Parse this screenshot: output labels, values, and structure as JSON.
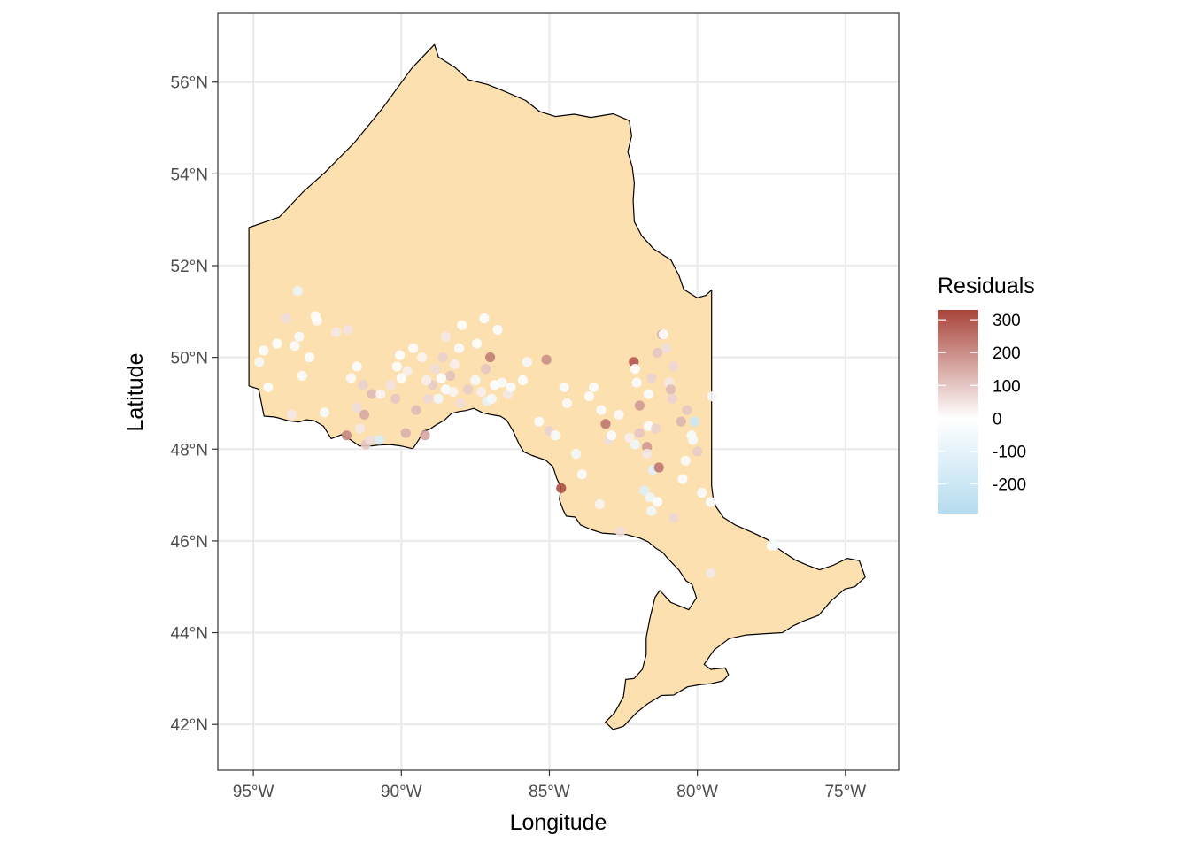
{
  "chart_data": {
    "type": "scatter",
    "map_region": "Ontario",
    "xlabel": "Longitude",
    "ylabel": "Latitude",
    "xlim": [
      -96.2,
      -73.2
    ],
    "ylim": [
      41.0,
      57.5
    ],
    "x_ticks": [
      {
        "value": -95,
        "label": "95°W"
      },
      {
        "value": -90,
        "label": "90°W"
      },
      {
        "value": -85,
        "label": "85°W"
      },
      {
        "value": -80,
        "label": "80°W"
      },
      {
        "value": -75,
        "label": "75°W"
      }
    ],
    "y_ticks": [
      {
        "value": 42,
        "label": "42°N"
      },
      {
        "value": 44,
        "label": "44°N"
      },
      {
        "value": 46,
        "label": "46°N"
      },
      {
        "value": 48,
        "label": "48°N"
      },
      {
        "value": 50,
        "label": "50°N"
      },
      {
        "value": 52,
        "label": "52°N"
      },
      {
        "value": 54,
        "label": "54°N"
      },
      {
        "value": 56,
        "label": "56°N"
      }
    ],
    "grid": true,
    "panel_background": "#ffffff",
    "grid_color": "#ebebeb",
    "land_fill": "#fde0b0",
    "border_color": "#000000",
    "legend": {
      "title": "Residuals",
      "position": "right",
      "range": [
        -290,
        330
      ],
      "ticks": [
        {
          "value": 300,
          "label": "300"
        },
        {
          "value": 200,
          "label": "200"
        },
        {
          "value": 100,
          "label": "100"
        },
        {
          "value": 0,
          "label": "0"
        },
        {
          "value": -100,
          "label": "-100"
        },
        {
          "value": -200,
          "label": "-200"
        }
      ],
      "color_low": "#b5dcef",
      "color_mid": "#ffffff",
      "color_high": "#a8443a"
    },
    "ontario_outline": [
      [
        -95.15,
        52.83
      ],
      [
        -95.15,
        49.38
      ],
      [
        -94.82,
        49.31
      ],
      [
        -94.64,
        48.72
      ],
      [
        -94.27,
        48.7
      ],
      [
        -93.83,
        48.62
      ],
      [
        -93.46,
        48.59
      ],
      [
        -93.21,
        48.64
      ],
      [
        -92.95,
        48.62
      ],
      [
        -92.63,
        48.5
      ],
      [
        -92.37,
        48.23
      ],
      [
        -92.0,
        48.32
      ],
      [
        -91.71,
        48.2
      ],
      [
        -91.42,
        48.07
      ],
      [
        -91.0,
        48.07
      ],
      [
        -90.75,
        48.09
      ],
      [
        -90.37,
        48.1
      ],
      [
        -90.03,
        48.07
      ],
      [
        -89.61,
        48.01
      ],
      [
        -89.4,
        48.22
      ],
      [
        -89.27,
        48.39
      ],
      [
        -89.05,
        48.43
      ],
      [
        -88.82,
        48.53
      ],
      [
        -88.55,
        48.63
      ],
      [
        -88.3,
        48.78
      ],
      [
        -88.06,
        48.82
      ],
      [
        -87.82,
        48.84
      ],
      [
        -87.55,
        48.89
      ],
      [
        -87.25,
        48.79
      ],
      [
        -86.96,
        48.75
      ],
      [
        -86.66,
        48.72
      ],
      [
        -86.44,
        48.63
      ],
      [
        -86.23,
        48.4
      ],
      [
        -86.0,
        48.08
      ],
      [
        -85.86,
        47.94
      ],
      [
        -85.58,
        47.86
      ],
      [
        -85.13,
        47.76
      ],
      [
        -84.88,
        47.62
      ],
      [
        -84.75,
        47.36
      ],
      [
        -84.61,
        47.17
      ],
      [
        -84.66,
        46.9
      ],
      [
        -84.55,
        46.7
      ],
      [
        -84.43,
        46.54
      ],
      [
        -84.13,
        46.52
      ],
      [
        -83.95,
        46.35
      ],
      [
        -83.6,
        46.25
      ],
      [
        -83.22,
        46.17
      ],
      [
        -82.8,
        46.15
      ],
      [
        -82.4,
        46.14
      ],
      [
        -81.94,
        46.06
      ],
      [
        -81.66,
        45.98
      ],
      [
        -81.4,
        45.84
      ],
      [
        -81.17,
        45.75
      ],
      [
        -80.98,
        45.6
      ],
      [
        -80.63,
        45.37
      ],
      [
        -80.38,
        45.13
      ],
      [
        -80.18,
        45.05
      ],
      [
        -80.03,
        44.76
      ],
      [
        -80.29,
        44.5
      ],
      [
        -80.9,
        44.66
      ],
      [
        -81.27,
        44.92
      ],
      [
        -81.43,
        44.77
      ],
      [
        -81.6,
        44.32
      ],
      [
        -81.73,
        43.89
      ],
      [
        -81.73,
        43.52
      ],
      [
        -81.86,
        43.2
      ],
      [
        -82.14,
        43.0
      ],
      [
        -82.42,
        42.98
      ],
      [
        -82.5,
        42.6
      ],
      [
        -82.8,
        42.25
      ],
      [
        -83.11,
        42.05
      ],
      [
        -82.85,
        41.89
      ],
      [
        -82.5,
        41.96
      ],
      [
        -82.05,
        42.26
      ],
      [
        -81.68,
        42.45
      ],
      [
        -81.22,
        42.63
      ],
      [
        -80.8,
        42.64
      ],
      [
        -80.33,
        42.82
      ],
      [
        -79.88,
        42.87
      ],
      [
        -79.53,
        42.89
      ],
      [
        -79.14,
        42.95
      ],
      [
        -78.95,
        43.08
      ],
      [
        -79.06,
        43.23
      ],
      [
        -79.55,
        43.2
      ],
      [
        -79.77,
        43.31
      ],
      [
        -79.44,
        43.62
      ],
      [
        -78.93,
        43.87
      ],
      [
        -78.35,
        43.95
      ],
      [
        -77.7,
        43.98
      ],
      [
        -77.13,
        44.0
      ],
      [
        -76.76,
        44.15
      ],
      [
        -76.43,
        44.25
      ],
      [
        -75.9,
        44.38
      ],
      [
        -75.49,
        44.69
      ],
      [
        -75.02,
        44.95
      ],
      [
        -74.68,
        45.0
      ],
      [
        -74.33,
        45.21
      ],
      [
        -74.53,
        45.57
      ],
      [
        -74.94,
        45.62
      ],
      [
        -75.41,
        45.47
      ],
      [
        -75.87,
        45.37
      ],
      [
        -76.28,
        45.47
      ],
      [
        -76.68,
        45.58
      ],
      [
        -77.2,
        45.8
      ],
      [
        -77.63,
        46.03
      ],
      [
        -78.13,
        46.18
      ],
      [
        -78.73,
        46.35
      ],
      [
        -79.12,
        46.51
      ],
      [
        -79.38,
        46.75
      ],
      [
        -79.47,
        46.94
      ],
      [
        -79.52,
        47.2
      ],
      [
        -79.52,
        47.6
      ],
      [
        -79.52,
        48.5
      ],
      [
        -79.52,
        49.5
      ],
      [
        -79.52,
        50.5
      ],
      [
        -79.52,
        51.47
      ],
      [
        -79.72,
        51.35
      ],
      [
        -80.01,
        51.3
      ],
      [
        -80.46,
        51.48
      ],
      [
        -80.62,
        51.78
      ],
      [
        -80.89,
        52.12
      ],
      [
        -81.47,
        52.36
      ],
      [
        -81.88,
        52.65
      ],
      [
        -82.13,
        52.96
      ],
      [
        -82.17,
        53.42
      ],
      [
        -82.13,
        53.8
      ],
      [
        -82.2,
        54.15
      ],
      [
        -82.35,
        54.48
      ],
      [
        -82.22,
        54.83
      ],
      [
        -82.3,
        55.16
      ],
      [
        -82.84,
        55.31
      ],
      [
        -83.6,
        55.23
      ],
      [
        -84.16,
        55.3
      ],
      [
        -84.8,
        55.25
      ],
      [
        -85.33,
        55.36
      ],
      [
        -85.8,
        55.6
      ],
      [
        -86.55,
        55.81
      ],
      [
        -87.1,
        55.95
      ],
      [
        -87.73,
        56.05
      ],
      [
        -88.19,
        56.32
      ],
      [
        -88.75,
        56.55
      ],
      [
        -88.88,
        56.82
      ],
      [
        -89.65,
        56.3
      ],
      [
        -90.65,
        55.42
      ],
      [
        -91.6,
        54.67
      ],
      [
        -92.57,
        54.04
      ],
      [
        -93.33,
        53.6
      ],
      [
        -94.12,
        53.06
      ],
      [
        -95.15,
        52.83
      ]
    ],
    "points": [
      {
        "lon": -93.5,
        "lat": 51.45,
        "r": -80
      },
      {
        "lon": -94.8,
        "lat": 49.9,
        "r": -40
      },
      {
        "lon": -94.65,
        "lat": 50.15,
        "r": -20
      },
      {
        "lon": -94.2,
        "lat": 50.3,
        "r": -10
      },
      {
        "lon": -93.9,
        "lat": 50.85,
        "r": 60
      },
      {
        "lon": -93.6,
        "lat": 50.25,
        "r": -25
      },
      {
        "lon": -93.45,
        "lat": 50.45,
        "r": -30
      },
      {
        "lon": -92.9,
        "lat": 50.9,
        "r": -5
      },
      {
        "lon": -92.85,
        "lat": 50.8,
        "r": 5
      },
      {
        "lon": -93.35,
        "lat": 49.6,
        "r": -15
      },
      {
        "lon": -93.1,
        "lat": 50.0,
        "r": -10
      },
      {
        "lon": -92.2,
        "lat": 50.55,
        "r": 40
      },
      {
        "lon": -91.8,
        "lat": 50.6,
        "r": 50
      },
      {
        "lon": -91.5,
        "lat": 49.8,
        "r": -20
      },
      {
        "lon": -91.7,
        "lat": 49.55,
        "r": 10
      },
      {
        "lon": -91.3,
        "lat": 49.4,
        "r": 80
      },
      {
        "lon": -91.0,
        "lat": 49.2,
        "r": 120
      },
      {
        "lon": -91.5,
        "lat": 48.9,
        "r": 60
      },
      {
        "lon": -91.25,
        "lat": 48.75,
        "r": 150
      },
      {
        "lon": -91.4,
        "lat": 48.45,
        "r": 40
      },
      {
        "lon": -91.85,
        "lat": 48.3,
        "r": 210
      },
      {
        "lon": -91.2,
        "lat": 48.1,
        "r": 100
      },
      {
        "lon": -91.05,
        "lat": 48.2,
        "r": 60
      },
      {
        "lon": -90.75,
        "lat": 48.2,
        "r": -150
      },
      {
        "lon": -90.7,
        "lat": 49.2,
        "r": 20
      },
      {
        "lon": -90.35,
        "lat": 49.4,
        "r": 50
      },
      {
        "lon": -90.15,
        "lat": 49.8,
        "r": -10
      },
      {
        "lon": -90.05,
        "lat": 50.05,
        "r": 0
      },
      {
        "lon": -90.2,
        "lat": 49.1,
        "r": 100
      },
      {
        "lon": -89.8,
        "lat": 49.7,
        "r": 30
      },
      {
        "lon": -89.6,
        "lat": 50.2,
        "r": -5
      },
      {
        "lon": -89.5,
        "lat": 48.85,
        "r": 120
      },
      {
        "lon": -89.85,
        "lat": 48.35,
        "r": 140
      },
      {
        "lon": -89.2,
        "lat": 48.3,
        "r": 160
      },
      {
        "lon": -89.1,
        "lat": 49.1,
        "r": 70
      },
      {
        "lon": -88.95,
        "lat": 49.4,
        "r": 90
      },
      {
        "lon": -88.75,
        "lat": 49.1,
        "r": -60
      },
      {
        "lon": -88.5,
        "lat": 49.3,
        "r": -20
      },
      {
        "lon": -88.85,
        "lat": 49.75,
        "r": 60
      },
      {
        "lon": -88.6,
        "lat": 50.0,
        "r": 80
      },
      {
        "lon": -88.35,
        "lat": 49.6,
        "r": 110
      },
      {
        "lon": -88.2,
        "lat": 49.85,
        "r": 30
      },
      {
        "lon": -88.05,
        "lat": 50.2,
        "r": -30
      },
      {
        "lon": -88.5,
        "lat": 50.45,
        "r": 40
      },
      {
        "lon": -88.0,
        "lat": 49.0,
        "r": 60
      },
      {
        "lon": -87.75,
        "lat": 49.3,
        "r": 90
      },
      {
        "lon": -87.5,
        "lat": 49.5,
        "r": -40
      },
      {
        "lon": -87.3,
        "lat": 49.25,
        "r": 30
      },
      {
        "lon": -87.1,
        "lat": 49.05,
        "r": -100
      },
      {
        "lon": -87.0,
        "lat": 50.0,
        "r": 230
      },
      {
        "lon": -87.15,
        "lat": 49.75,
        "r": 100
      },
      {
        "lon": -87.45,
        "lat": 50.3,
        "r": -10
      },
      {
        "lon": -87.2,
        "lat": 50.85,
        "r": -20
      },
      {
        "lon": -86.75,
        "lat": 50.6,
        "r": -15
      },
      {
        "lon": -86.6,
        "lat": 49.45,
        "r": -30
      },
      {
        "lon": -86.4,
        "lat": 49.2,
        "r": 40
      },
      {
        "lon": -86.3,
        "lat": 49.35,
        "r": -20
      },
      {
        "lon": -85.9,
        "lat": 49.5,
        "r": -10
      },
      {
        "lon": -85.75,
        "lat": 49.9,
        "r": -40
      },
      {
        "lon": -85.1,
        "lat": 49.95,
        "r": 200
      },
      {
        "lon": -85.0,
        "lat": 48.4,
        "r": 80
      },
      {
        "lon": -84.8,
        "lat": 48.3,
        "r": -30
      },
      {
        "lon": -85.35,
        "lat": 48.6,
        "r": -20
      },
      {
        "lon": -84.5,
        "lat": 49.35,
        "r": -20
      },
      {
        "lon": -84.4,
        "lat": 49.0,
        "r": 10
      },
      {
        "lon": -84.1,
        "lat": 47.9,
        "r": -50
      },
      {
        "lon": -83.9,
        "lat": 47.45,
        "r": -30
      },
      {
        "lon": -84.6,
        "lat": 47.15,
        "r": 310
      },
      {
        "lon": -83.5,
        "lat": 49.35,
        "r": -15
      },
      {
        "lon": -83.65,
        "lat": 49.15,
        "r": -5
      },
      {
        "lon": -83.25,
        "lat": 48.85,
        "r": -25
      },
      {
        "lon": -83.1,
        "lat": 48.55,
        "r": 240
      },
      {
        "lon": -83.0,
        "lat": 48.2,
        "r": 60
      },
      {
        "lon": -82.9,
        "lat": 48.3,
        "r": -20
      },
      {
        "lon": -82.65,
        "lat": 48.75,
        "r": 10
      },
      {
        "lon": -82.3,
        "lat": 48.25,
        "r": 30
      },
      {
        "lon": -82.1,
        "lat": 48.1,
        "r": -70
      },
      {
        "lon": -81.95,
        "lat": 48.35,
        "r": 100
      },
      {
        "lon": -81.7,
        "lat": 48.05,
        "r": 180
      },
      {
        "lon": -81.65,
        "lat": 48.5,
        "r": -15
      },
      {
        "lon": -81.4,
        "lat": 48.45,
        "r": 80
      },
      {
        "lon": -81.7,
        "lat": 47.9,
        "r": 40
      },
      {
        "lon": -81.5,
        "lat": 47.55,
        "r": -120
      },
      {
        "lon": -81.3,
        "lat": 47.6,
        "r": 240
      },
      {
        "lon": -81.8,
        "lat": 47.1,
        "r": -130
      },
      {
        "lon": -81.6,
        "lat": 46.95,
        "r": -70
      },
      {
        "lon": -81.55,
        "lat": 46.65,
        "r": -60
      },
      {
        "lon": -81.35,
        "lat": 46.85,
        "r": -10
      },
      {
        "lon": -80.8,
        "lat": 46.5,
        "r": 70
      },
      {
        "lon": -80.5,
        "lat": 47.35,
        "r": -20
      },
      {
        "lon": -80.4,
        "lat": 47.75,
        "r": -30
      },
      {
        "lon": -80.15,
        "lat": 48.2,
        "r": -40
      },
      {
        "lon": -80.0,
        "lat": 47.95,
        "r": 90
      },
      {
        "lon": -80.1,
        "lat": 48.6,
        "r": -200
      },
      {
        "lon": -80.55,
        "lat": 48.6,
        "r": 130
      },
      {
        "lon": -80.35,
        "lat": 48.85,
        "r": 100
      },
      {
        "lon": -80.2,
        "lat": 48.3,
        "r": -30
      },
      {
        "lon": -79.85,
        "lat": 47.05,
        "r": -30
      },
      {
        "lon": -79.55,
        "lat": 46.85,
        "r": -20
      },
      {
        "lon": -79.5,
        "lat": 49.15,
        "r": -40
      },
      {
        "lon": -82.15,
        "lat": 49.9,
        "r": 300
      },
      {
        "lon": -82.1,
        "lat": 49.75,
        "r": 0
      },
      {
        "lon": -82.05,
        "lat": 49.45,
        "r": -20
      },
      {
        "lon": -81.95,
        "lat": 48.95,
        "r": 180
      },
      {
        "lon": -81.65,
        "lat": 49.2,
        "r": -20
      },
      {
        "lon": -81.55,
        "lat": 49.55,
        "r": 80
      },
      {
        "lon": -81.35,
        "lat": 50.1,
        "r": 100
      },
      {
        "lon": -81.2,
        "lat": 50.5,
        "r": 150
      },
      {
        "lon": -81.15,
        "lat": 50.5,
        "r": -10
      },
      {
        "lon": -81.05,
        "lat": 50.2,
        "r": 60
      },
      {
        "lon": -80.95,
        "lat": 49.45,
        "r": 40
      },
      {
        "lon": -80.9,
        "lat": 49.3,
        "r": 120
      },
      {
        "lon": -80.85,
        "lat": 49.1,
        "r": 80
      },
      {
        "lon": -80.8,
        "lat": 49.8,
        "r": 70
      },
      {
        "lon": -77.5,
        "lat": 45.9,
        "r": -10
      },
      {
        "lon": -77.4,
        "lat": 45.9,
        "r": -30
      },
      {
        "lon": -79.55,
        "lat": 45.3,
        "r": 40
      },
      {
        "lon": -82.6,
        "lat": 46.2,
        "r": 60
      },
      {
        "lon": -83.3,
        "lat": 46.8,
        "r": 20
      },
      {
        "lon": -87.95,
        "lat": 50.7,
        "r": -5
      },
      {
        "lon": -89.3,
        "lat": 50.0,
        "r": 20
      },
      {
        "lon": -90.0,
        "lat": 49.55,
        "r": -20
      },
      {
        "lon": -89.15,
        "lat": 49.5,
        "r": 30
      },
      {
        "lon": -88.65,
        "lat": 49.55,
        "r": -10
      },
      {
        "lon": -88.25,
        "lat": 49.25,
        "r": 20
      },
      {
        "lon": -86.85,
        "lat": 49.4,
        "r": -10
      },
      {
        "lon": -86.95,
        "lat": 49.1,
        "r": -40
      },
      {
        "lon": -92.6,
        "lat": 48.8,
        "r": -30
      },
      {
        "lon": -93.7,
        "lat": 48.75,
        "r": 40
      },
      {
        "lon": -94.5,
        "lat": 49.35,
        "r": -10
      }
    ]
  }
}
